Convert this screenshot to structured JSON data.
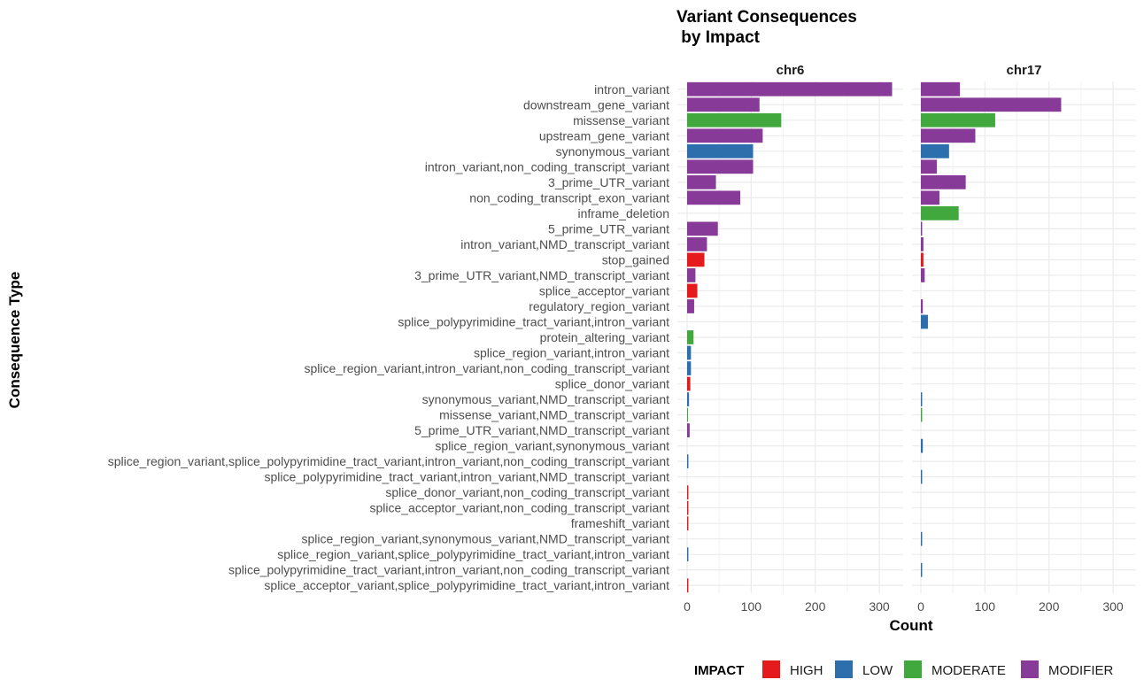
{
  "chart_data": {
    "type": "bar",
    "orientation": "horizontal",
    "title": "Variant Consequences\n by Impact",
    "xlabel": "Count",
    "ylabel": "Consequence Type",
    "xlim": [
      0,
      340
    ],
    "xticks": [
      0,
      100,
      200,
      300
    ],
    "legend_title": "IMPACT",
    "legend_position": "bottom",
    "legend": [
      {
        "name": "HIGH",
        "color": "#e41a1c"
      },
      {
        "name": "LOW",
        "color": "#2c6fac"
      },
      {
        "name": "MODERATE",
        "color": "#41a83e"
      },
      {
        "name": "MODIFIER",
        "color": "#873a97"
      }
    ],
    "categories": [
      "intron_variant",
      "downstream_gene_variant",
      "missense_variant",
      "upstream_gene_variant",
      "synonymous_variant",
      "intron_variant,non_coding_transcript_variant",
      "3_prime_UTR_variant",
      "non_coding_transcript_exon_variant",
      "inframe_deletion",
      "5_prime_UTR_variant",
      "intron_variant,NMD_transcript_variant",
      "stop_gained",
      "3_prime_UTR_variant,NMD_transcript_variant",
      "splice_acceptor_variant",
      "regulatory_region_variant",
      "splice_polypyrimidine_tract_variant,intron_variant",
      "protein_altering_variant",
      "splice_region_variant,intron_variant",
      "splice_region_variant,intron_variant,non_coding_transcript_variant",
      "splice_donor_variant",
      "synonymous_variant,NMD_transcript_variant",
      "missense_variant,NMD_transcript_variant",
      "5_prime_UTR_variant,NMD_transcript_variant",
      "splice_region_variant,synonymous_variant",
      "splice_region_variant,splice_polypyrimidine_tract_variant,intron_variant,non_coding_transcript_variant",
      "splice_polypyrimidine_tract_variant,intron_variant,NMD_transcript_variant",
      "splice_donor_variant,non_coding_transcript_variant",
      "splice_acceptor_variant,non_coding_transcript_variant",
      "frameshift_variant",
      "splice_region_variant,synonymous_variant,NMD_transcript_variant",
      "splice_region_variant,splice_polypyrimidine_tract_variant,intron_variant",
      "splice_polypyrimidine_tract_variant,intron_variant,non_coding_transcript_variant",
      "splice_acceptor_variant,splice_polypyrimidine_tract_variant,intron_variant"
    ],
    "impact": [
      "MODIFIER",
      "MODIFIER",
      "MODERATE",
      "MODIFIER",
      "LOW",
      "MODIFIER",
      "MODIFIER",
      "MODIFIER",
      "MODERATE",
      "MODIFIER",
      "MODIFIER",
      "HIGH",
      "MODIFIER",
      "HIGH",
      "MODIFIER",
      "LOW",
      "MODERATE",
      "LOW",
      "LOW",
      "HIGH",
      "LOW",
      "MODERATE",
      "MODIFIER",
      "LOW",
      "LOW",
      "LOW",
      "HIGH",
      "HIGH",
      "HIGH",
      "LOW",
      "LOW",
      "LOW",
      "HIGH"
    ],
    "panels": [
      {
        "name": "chr6",
        "values": [
          320,
          113,
          147,
          118,
          103,
          103,
          45,
          83,
          0,
          48,
          31,
          27,
          13,
          16,
          11,
          0,
          10,
          6,
          6,
          5,
          3,
          1,
          4,
          0,
          2,
          0,
          2,
          2,
          2,
          0,
          2,
          0,
          2
        ]
      },
      {
        "name": "chr17",
        "values": [
          61,
          219,
          116,
          85,
          44,
          25,
          70,
          29,
          59,
          2,
          4,
          4,
          6,
          0,
          3,
          11,
          0,
          0,
          0,
          0,
          2,
          2,
          0,
          3,
          0,
          2,
          0,
          0,
          0,
          2,
          0,
          2,
          0
        ]
      }
    ]
  }
}
